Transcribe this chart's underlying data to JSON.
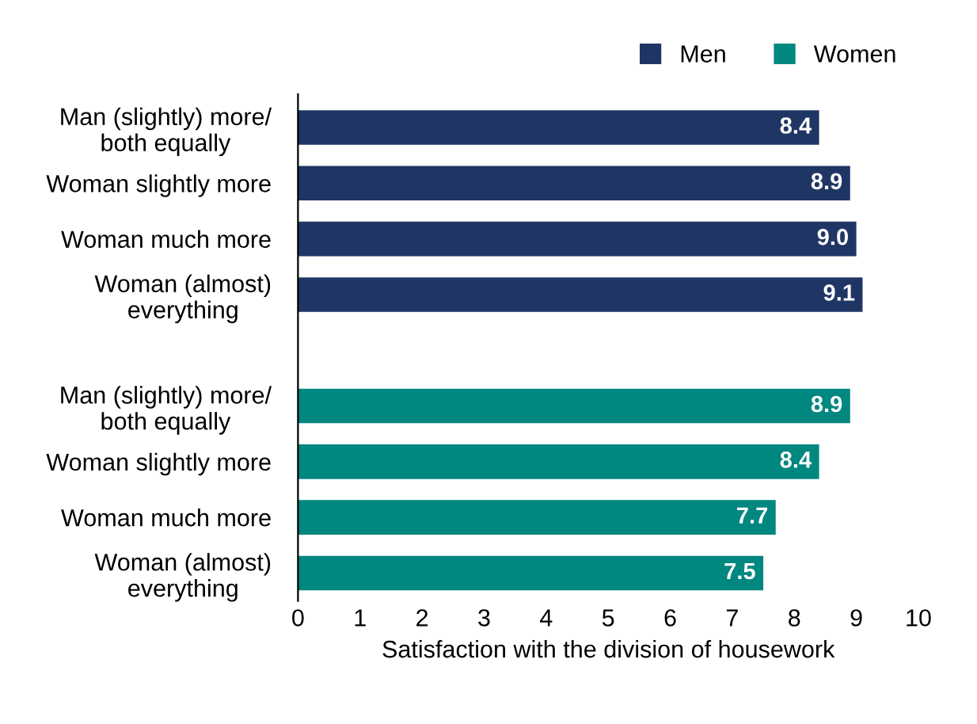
{
  "chart_data": {
    "type": "bar",
    "orientation": "horizontal",
    "xlabel": "Satisfaction with the division of housework",
    "categories": [
      "Man (slightly) more/\nboth equally",
      "Woman slightly more",
      "Woman much more",
      "Woman (almost)\neverything",
      null,
      "Man (slightly) more/\nboth equally",
      "Woman slightly more",
      "Woman much more",
      "Woman (almost)\neverything"
    ],
    "series": [
      {
        "name": "Men",
        "color": "#1f3665",
        "values": [
          8.4,
          8.9,
          9.0,
          9.1,
          null,
          null,
          null,
          null,
          null
        ],
        "value_labels": [
          "8.4",
          "8.9",
          "9.0",
          "9.1",
          null,
          null,
          null,
          null,
          null
        ]
      },
      {
        "name": "Women",
        "color": "#00877f",
        "values": [
          null,
          null,
          null,
          null,
          null,
          8.9,
          8.4,
          7.7,
          7.5
        ],
        "value_labels": [
          null,
          null,
          null,
          null,
          null,
          "8.9",
          "8.4",
          "7.7",
          "7.5"
        ]
      }
    ],
    "xlim": [
      0,
      10
    ],
    "xticks": [
      0,
      1,
      2,
      3,
      4,
      5,
      6,
      7,
      8,
      9,
      10
    ],
    "legend": "top right",
    "grid": false
  }
}
